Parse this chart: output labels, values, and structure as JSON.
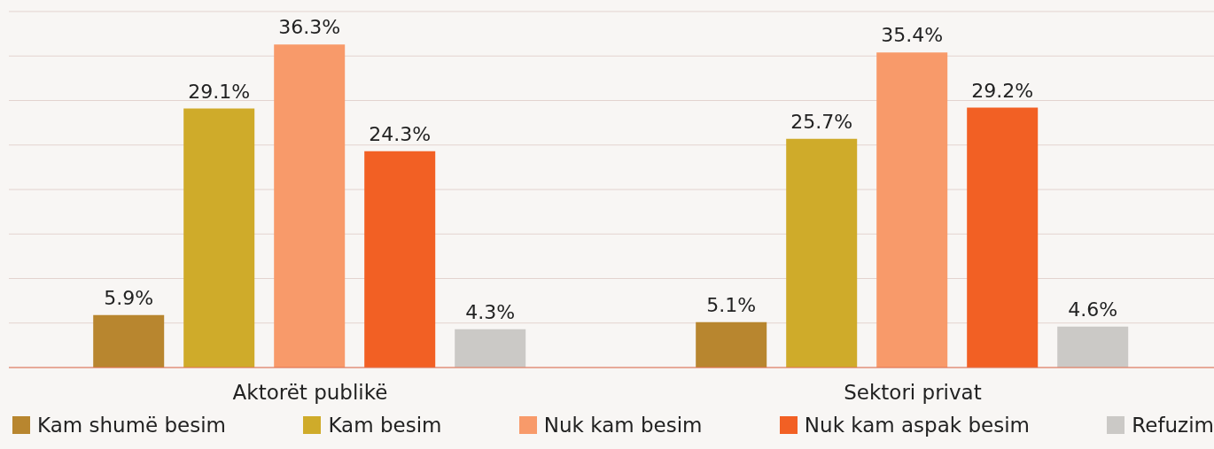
{
  "chart_data": {
    "type": "bar",
    "categories": [
      "Aktorët publikë",
      "Sektori privat"
    ],
    "series": [
      {
        "name": "Kam shumë besim",
        "color": "#b8862f",
        "values": [
          5.9,
          5.1
        ],
        "value_labels": [
          "5.9%",
          "5.1%"
        ]
      },
      {
        "name": "Kam besim",
        "color": "#cfab2a",
        "values": [
          29.1,
          25.7
        ],
        "value_labels": [
          "29.1%",
          "25.7%"
        ]
      },
      {
        "name": "Nuk kam besim",
        "color": "#f89a6a",
        "values": [
          36.3,
          35.4
        ],
        "value_labels": [
          "36.3%",
          "35.4%"
        ]
      },
      {
        "name": "Nuk kam aspak besim",
        "color": "#f26024",
        "values": [
          24.3,
          29.2
        ],
        "value_labels": [
          "24.3%",
          "29.2%"
        ]
      },
      {
        "name": "Refuzim",
        "color": "#cbc9c6",
        "values": [
          4.3,
          4.6
        ],
        "value_labels": [
          "4.3%",
          "4.6%"
        ]
      }
    ],
    "ylim": [
      0,
      40
    ],
    "tick_labels": "x",
    "grid": "y",
    "legend": "bottom"
  }
}
